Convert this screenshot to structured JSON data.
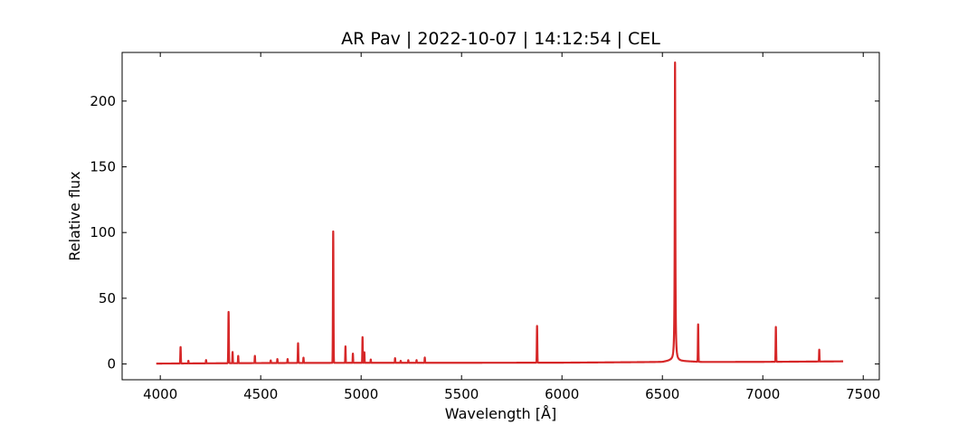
{
  "chart_data": {
    "type": "line",
    "title": "AR Pav | 2022-10-07 | 14:12:54 | CEL",
    "xlabel": "Wavelength [Å]",
    "ylabel": "Relative flux",
    "xlim": [
      3810,
      7580
    ],
    "ylim": [
      -12,
      237
    ],
    "xticks": [
      4000,
      4500,
      5000,
      5500,
      6000,
      6500,
      7000,
      7500
    ],
    "yticks": [
      0,
      50,
      100,
      150,
      200
    ],
    "grid": false,
    "legend": "none",
    "colors": {
      "line": "#d62728",
      "axes": "#000000",
      "background": "#ffffff"
    },
    "series": [
      {
        "baseline": [
          [
            3980,
            0.3
          ],
          [
            4500,
            0.7
          ],
          [
            5000,
            0.9
          ],
          [
            5500,
            0.9
          ],
          [
            6000,
            1.0
          ],
          [
            6500,
            1.5
          ],
          [
            6540,
            2.5
          ],
          [
            6700,
            1.5
          ],
          [
            7000,
            1.6
          ],
          [
            7400,
            2.0
          ]
        ],
        "lines": [
          {
            "x": 4101,
            "y": 12.5,
            "w": 1.2
          },
          {
            "x": 4140,
            "y": 2.0,
            "w": 1.0
          },
          {
            "x": 4228,
            "y": 2.5,
            "w": 1.0
          },
          {
            "x": 4340,
            "y": 39.0,
            "w": 1.3
          },
          {
            "x": 4360,
            "y": 8.5,
            "w": 1.0
          },
          {
            "x": 4388,
            "y": 5.5,
            "w": 1.0
          },
          {
            "x": 4471,
            "y": 5.5,
            "w": 1.0
          },
          {
            "x": 4550,
            "y": 2.0,
            "w": 1.0
          },
          {
            "x": 4583,
            "y": 3.0,
            "w": 1.0
          },
          {
            "x": 4634,
            "y": 3.0,
            "w": 1.2
          },
          {
            "x": 4686,
            "y": 15.0,
            "w": 1.2
          },
          {
            "x": 4713,
            "y": 4.0,
            "w": 1.0
          },
          {
            "x": 4861,
            "y": 100.0,
            "w": 1.3
          },
          {
            "x": 4922,
            "y": 12.5,
            "w": 1.0
          },
          {
            "x": 4959,
            "y": 7.0,
            "w": 1.0
          },
          {
            "x": 5007,
            "y": 19.5,
            "w": 1.0
          },
          {
            "x": 5016,
            "y": 8.0,
            "w": 1.0
          },
          {
            "x": 5048,
            "y": 2.5,
            "w": 1.0
          },
          {
            "x": 5169,
            "y": 3.5,
            "w": 1.0
          },
          {
            "x": 5197,
            "y": 1.5,
            "w": 1.0
          },
          {
            "x": 5235,
            "y": 2.0,
            "w": 1.0
          },
          {
            "x": 5276,
            "y": 2.0,
            "w": 1.0
          },
          {
            "x": 5317,
            "y": 4.0,
            "w": 1.0
          },
          {
            "x": 5876,
            "y": 28.0,
            "w": 1.2
          },
          {
            "x": 6563,
            "y": 227.0,
            "w": 1.6
          },
          {
            "x": 6678,
            "y": 28.5,
            "w": 1.2
          },
          {
            "x": 7065,
            "y": 26.5,
            "w": 1.2
          },
          {
            "x": 7281,
            "y": 9.0,
            "w": 1.0
          }
        ]
      }
    ]
  }
}
